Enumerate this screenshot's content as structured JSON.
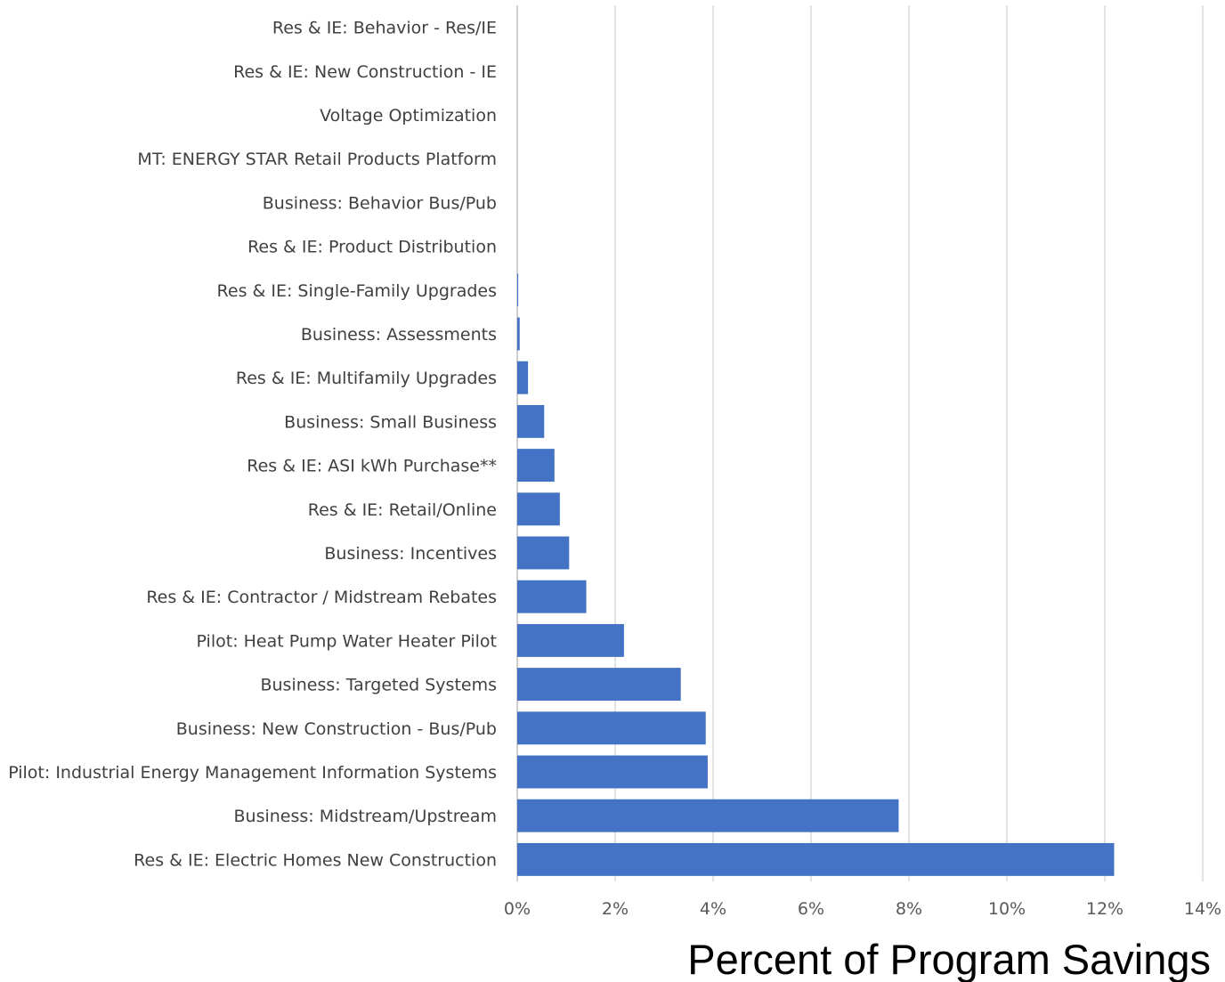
{
  "chart_data": {
    "type": "bar",
    "orientation": "horizontal",
    "title": "",
    "xlabel": "Percent of Program Savings",
    "ylabel": "",
    "xlim": [
      0,
      14
    ],
    "x_ticks": [
      0,
      2,
      4,
      6,
      8,
      10,
      12,
      14
    ],
    "x_tick_labels": [
      "0%",
      "2%",
      "4%",
      "6%",
      "8%",
      "10%",
      "12%",
      "14%"
    ],
    "grid": true,
    "legend": "none",
    "bar_color": "#4472c4",
    "categories": [
      "Res & IE: Behavior - Res/IE",
      "Res & IE: New Construction - IE",
      "Voltage Optimization",
      "MT: ENERGY STAR Retail Products Platform",
      "Business: Behavior Bus/Pub",
      "Res & IE: Product Distribution",
      "Res & IE: Single-Family Upgrades",
      "Business: Assessments",
      "Res & IE: Multifamily Upgrades",
      "Business: Small Business",
      "Res & IE: ASI kWh Purchase**",
      "Res & IE: Retail/Online",
      "Business: Incentives",
      "Res & IE: Contractor / Midstream Rebates",
      "Pilot: Heat Pump Water Heater Pilot",
      "Business: Targeted Systems",
      "Business: New Construction - Bus/Pub",
      "Pilot: Industrial Energy Management Information Systems",
      "Business: Midstream/Upstream",
      "Res & IE: Electric Homes New Construction"
    ],
    "values": [
      0,
      0,
      0,
      0,
      0,
      0,
      0.02,
      0.05,
      0.22,
      0.55,
      0.76,
      0.87,
      1.06,
      1.41,
      2.18,
      3.34,
      3.85,
      3.89,
      7.79,
      12.19
    ]
  }
}
